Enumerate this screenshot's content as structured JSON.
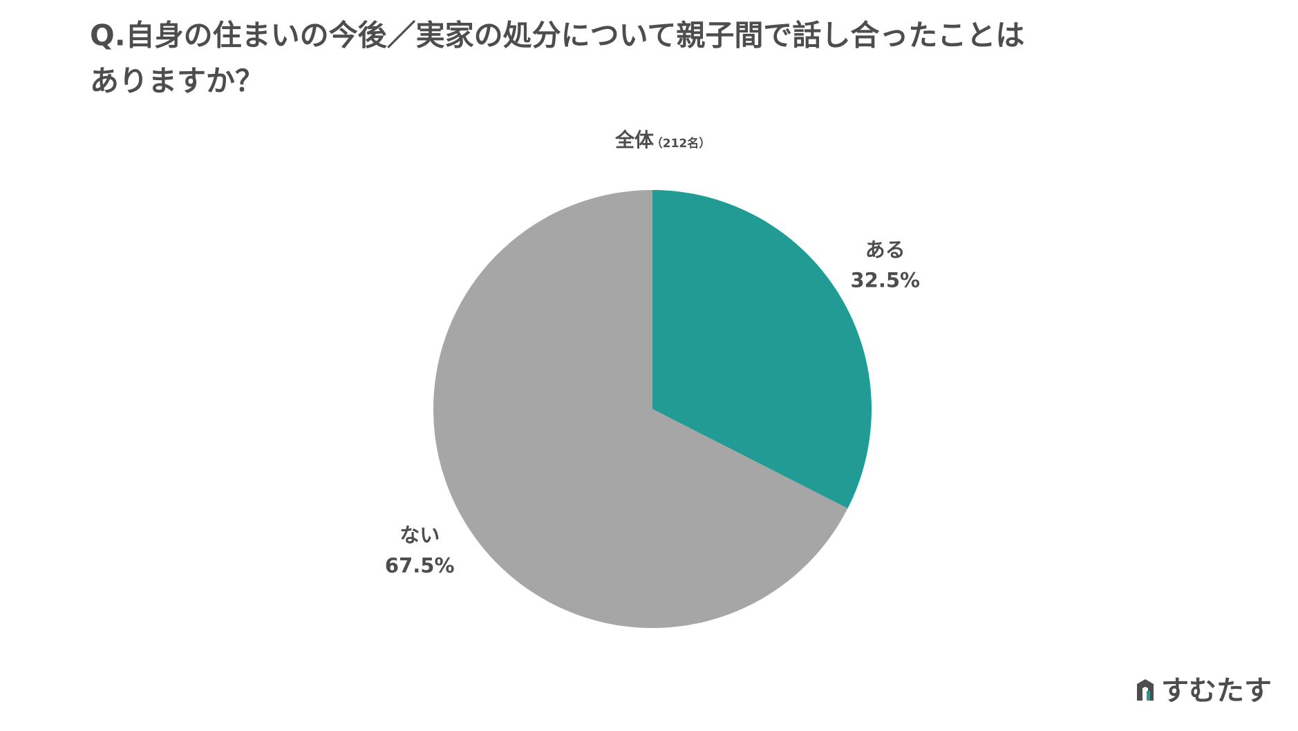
{
  "chart_data": {
    "type": "pie",
    "title": "Q.自身の住まいの今後／実家の処分について親子間で話し合ったことは",
    "title_line2": "ありますか？",
    "subtitle": "全体",
    "sample": "（212名）",
    "categories": [
      "ある",
      "ない"
    ],
    "values": [
      32.5,
      67.5
    ],
    "value_labels": [
      "32.5%",
      "67.5%"
    ],
    "colors": [
      "#229b95",
      "#a6a6a6"
    ]
  },
  "logo": "すむたす"
}
